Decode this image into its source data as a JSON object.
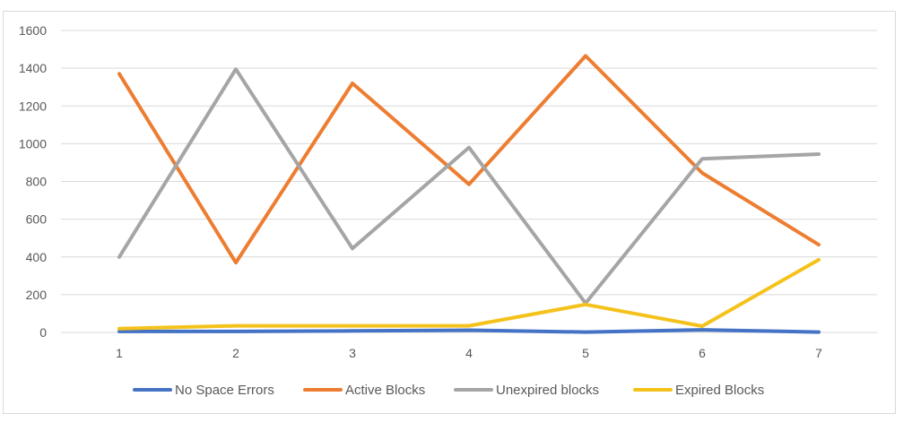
{
  "chart_data": {
    "type": "line",
    "title": "",
    "xlabel": "",
    "ylabel": "",
    "x": [
      "1",
      "2",
      "3",
      "4",
      "5",
      "6",
      "7"
    ],
    "y_ticks": [
      "0",
      "200",
      "400",
      "600",
      "800",
      "1000",
      "1200",
      "1400",
      "1600"
    ],
    "ylim": [
      0,
      1600
    ],
    "grid": true,
    "legend_position": "bottom",
    "series": [
      {
        "name": "No Space Errors",
        "color": "#4472C4",
        "values": [
          5,
          5,
          8,
          12,
          2,
          14,
          2
        ]
      },
      {
        "name": "Active Blocks",
        "color": "#ED7D31",
        "values": [
          1370,
          370,
          1320,
          785,
          1465,
          845,
          465
        ]
      },
      {
        "name": "Unexpired blocks",
        "color": "#A5A5A5",
        "values": [
          400,
          1395,
          445,
          980,
          155,
          920,
          945
        ]
      },
      {
        "name": "Expired Blocks",
        "color": "#F4C21B",
        "values": [
          20,
          35,
          35,
          35,
          148,
          33,
          385
        ]
      }
    ]
  }
}
